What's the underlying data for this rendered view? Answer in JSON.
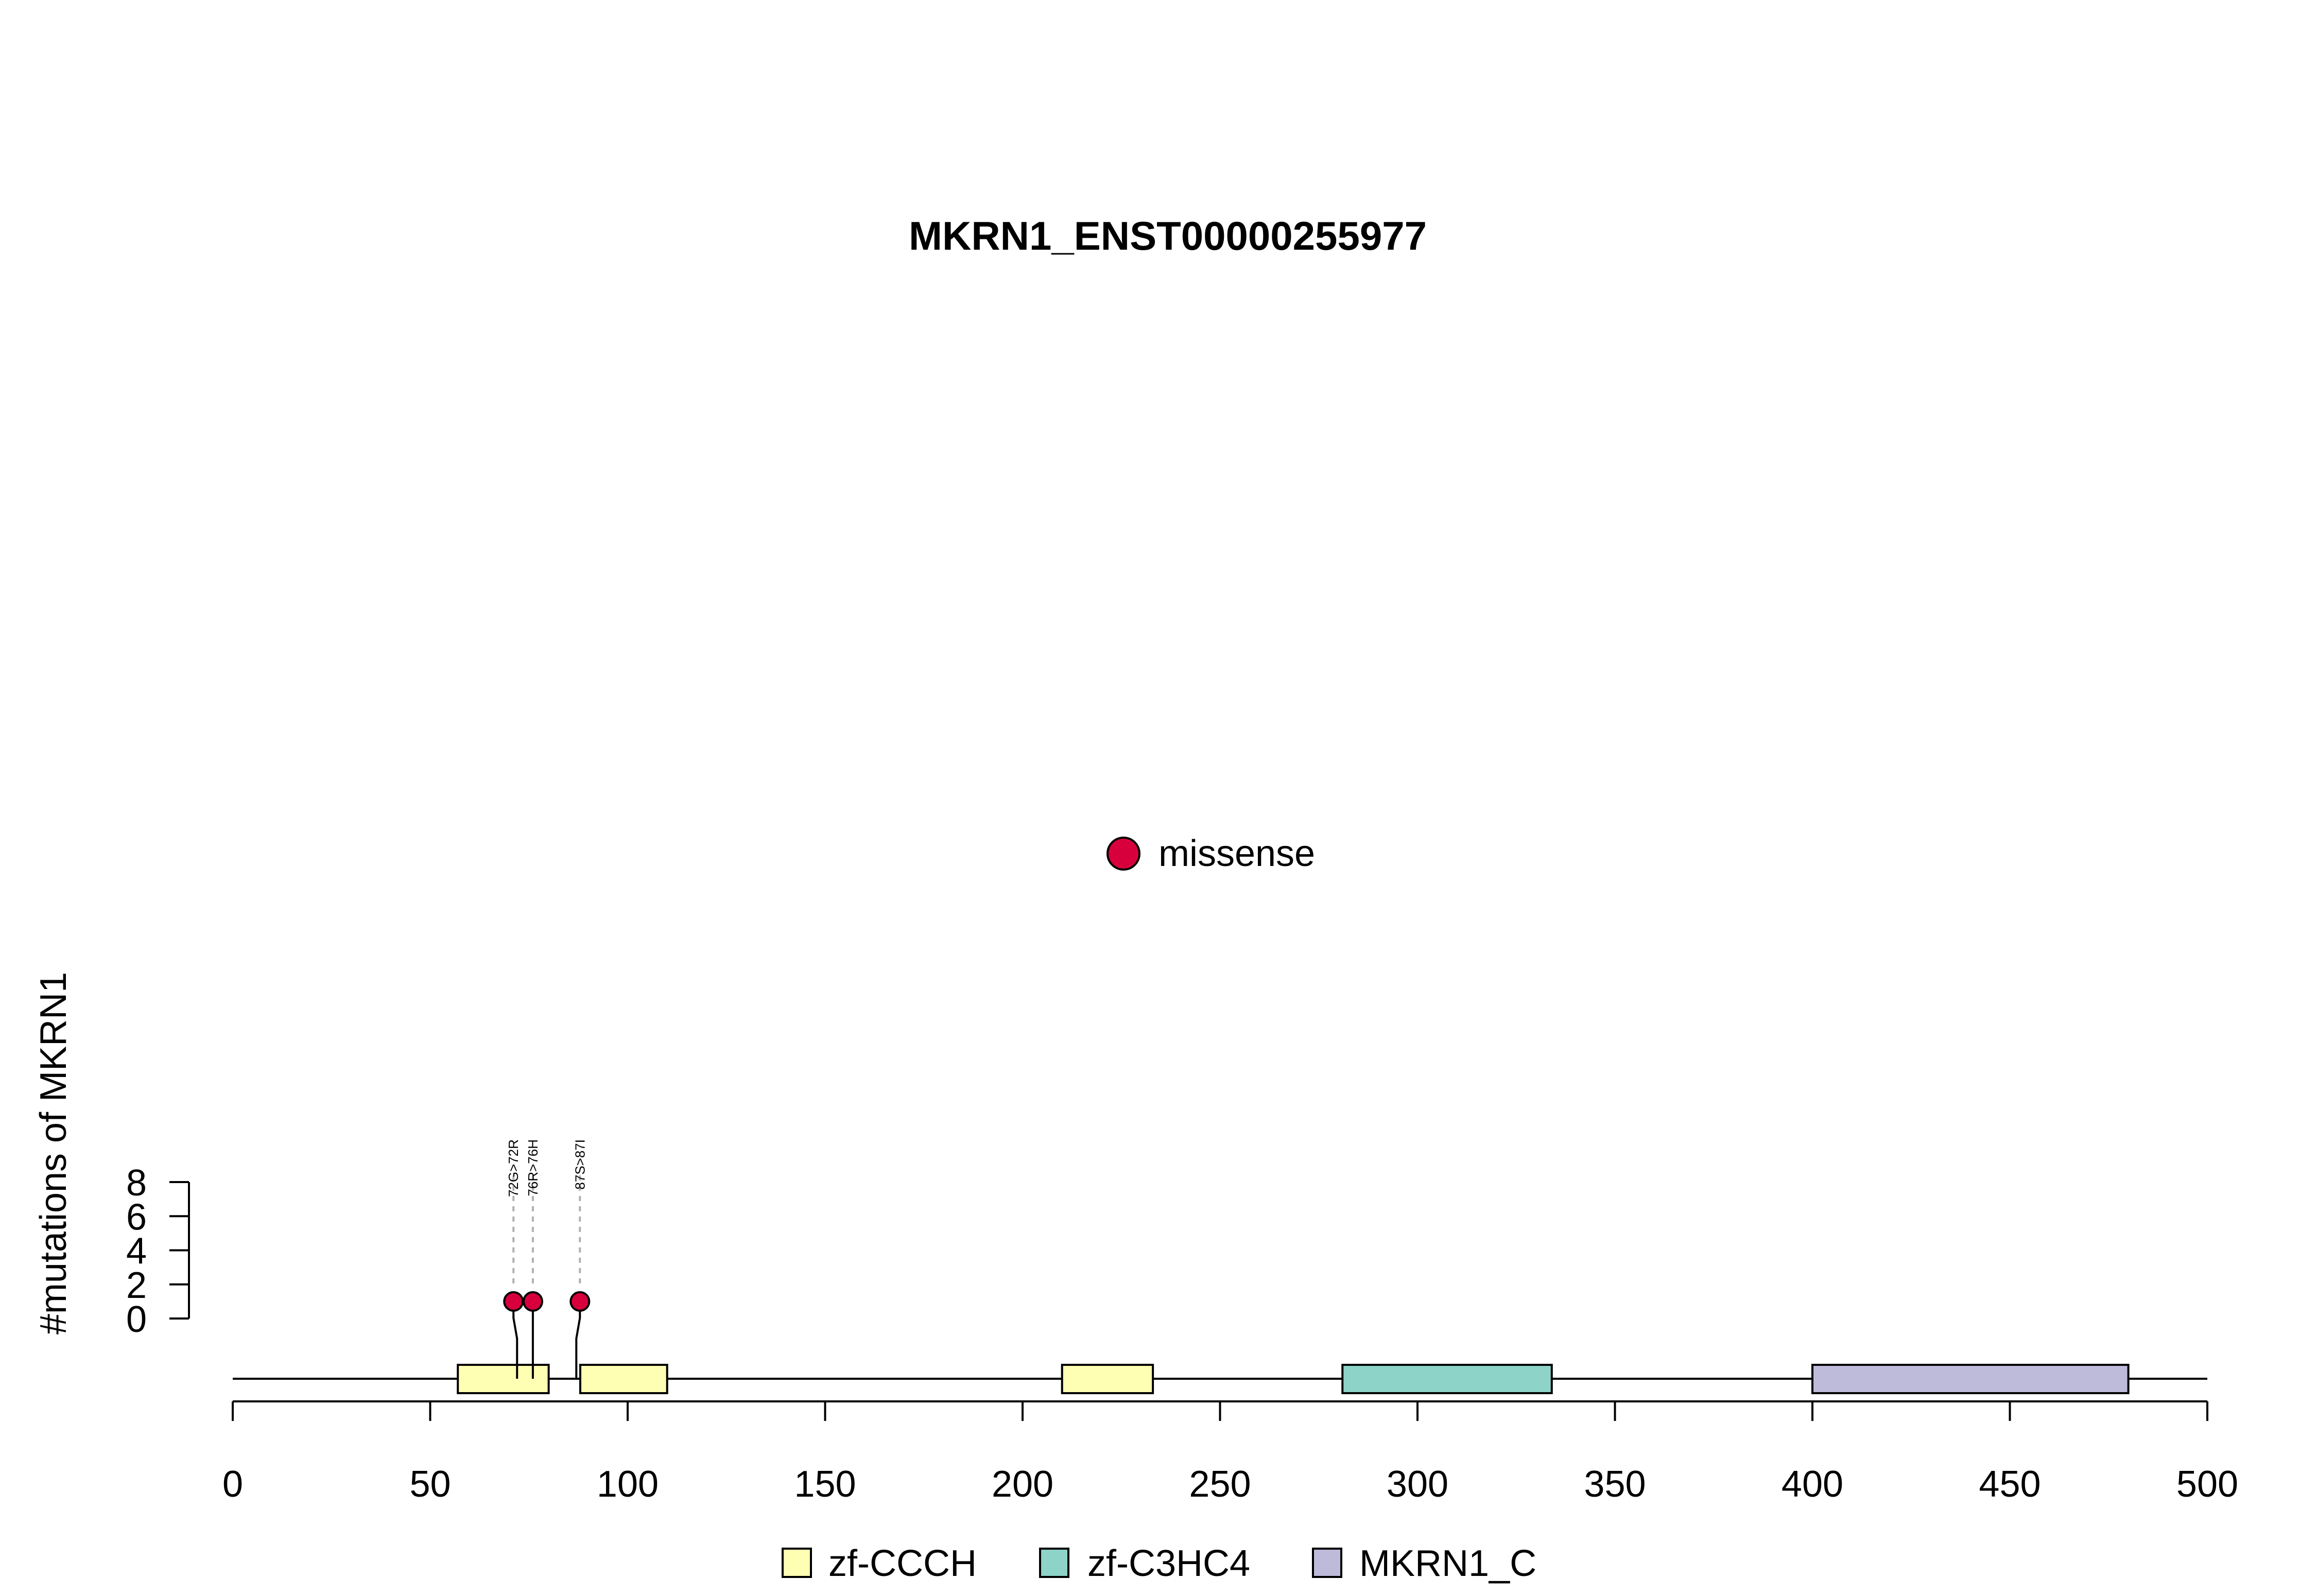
{
  "chart_data": {
    "type": "lollipop",
    "title": "MKRN1_ENST00000255977",
    "ylabel": "#mutations of MKRN1",
    "xlabel": "",
    "xlim": [
      0,
      500
    ],
    "x_ticks": [
      0,
      50,
      100,
      150,
      200,
      250,
      300,
      350,
      400,
      450,
      500
    ],
    "ylim": [
      0,
      8
    ],
    "y_ticks": [
      0,
      2,
      4,
      6,
      8
    ],
    "protein_length": 500,
    "mutation_legend": {
      "label": "missense",
      "color": "#d7003c"
    },
    "mutations": [
      {
        "label": "72G>72R",
        "position": 72,
        "count": 1,
        "type": "missense"
      },
      {
        "label": "76R>76H",
        "position": 76,
        "count": 1,
        "type": "missense"
      },
      {
        "label": "87S>87I",
        "position": 87,
        "count": 1,
        "type": "missense"
      }
    ],
    "domains": [
      {
        "name": "zf-CCCH",
        "start": 57,
        "end": 80,
        "color": "#ffffb3"
      },
      {
        "name": "zf-CCCH",
        "start": 88,
        "end": 110,
        "color": "#ffffb3"
      },
      {
        "name": "zf-CCCH",
        "start": 210,
        "end": 233,
        "color": "#ffffb3"
      },
      {
        "name": "zf-C3HC4",
        "start": 281,
        "end": 334,
        "color": "#8dd3c7"
      },
      {
        "name": "MKRN1_C",
        "start": 400,
        "end": 480,
        "color": "#bebada"
      }
    ],
    "domain_legend": [
      {
        "name": "zf-CCCH",
        "color": "#ffffb3"
      },
      {
        "name": "zf-C3HC4",
        "color": "#8dd3c7"
      },
      {
        "name": "MKRN1_C",
        "color": "#bebada"
      }
    ]
  }
}
